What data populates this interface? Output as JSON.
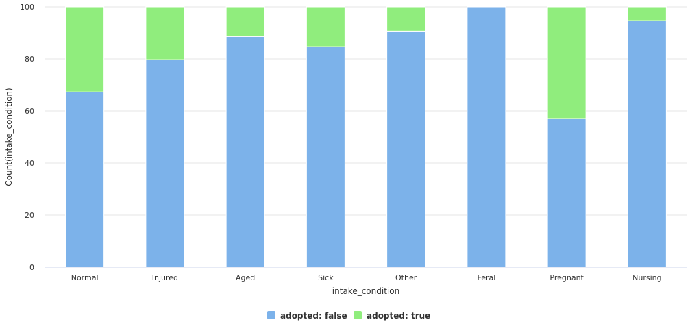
{
  "chart_data": {
    "type": "bar",
    "stacked": true,
    "normalized_percent": true,
    "categories": [
      "Normal",
      "Injured",
      "Aged",
      "Sick",
      "Other",
      "Feral",
      "Pregnant",
      "Nursing"
    ],
    "series": [
      {
        "name": "adopted: false",
        "color": "#7cb2ea",
        "values": [
          67.3,
          79.7,
          88.6,
          84.7,
          90.7,
          100,
          57.1,
          94.7
        ]
      },
      {
        "name": "adopted: true",
        "color": "#90ed7d",
        "values": [
          32.7,
          20.3,
          11.4,
          15.3,
          9.3,
          0,
          42.9,
          5.3
        ]
      }
    ],
    "xlabel": "intake_condition",
    "ylabel": "Count(intake_condition)",
    "ylim": [
      0,
      100
    ],
    "yticks": [
      0,
      20,
      40,
      60,
      80,
      100
    ],
    "grid": true,
    "legend_position": "bottom-center"
  }
}
